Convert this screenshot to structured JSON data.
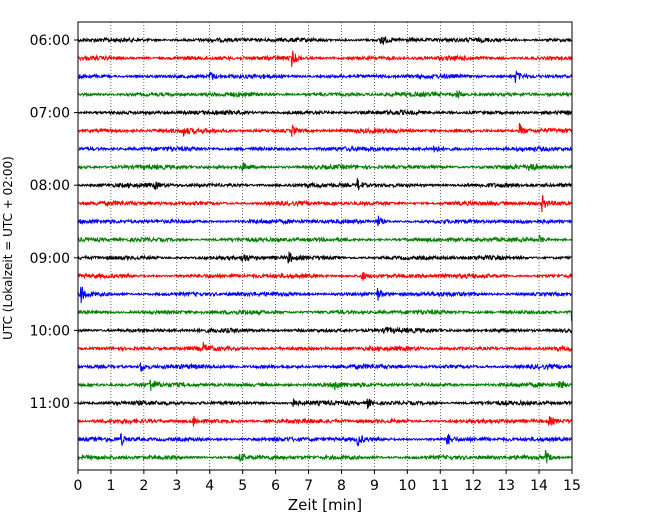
{
  "chart_data": {
    "type": "line",
    "subtype": "helicorder",
    "xlabel": "Zeit  [min]",
    "ylabel": "UTC (Lokalzeit = UTC + 02:00)",
    "xlim": [
      0,
      15
    ],
    "x_ticks": [
      0,
      1,
      2,
      3,
      4,
      5,
      6,
      7,
      8,
      9,
      10,
      11,
      12,
      13,
      14,
      15
    ],
    "x_tick_labels": [
      "0",
      "1",
      "2",
      "3",
      "4",
      "5",
      "6",
      "7",
      "8",
      "9",
      "10",
      "11",
      "12",
      "13",
      "14",
      "15"
    ],
    "y_tick_labels": [
      "06:00",
      "07:00",
      "08:00",
      "09:00",
      "10:00",
      "11:00"
    ],
    "trace_minutes": 15,
    "trace_colors": [
      "#000000",
      "#ff0000",
      "#0000ff",
      "#008000"
    ],
    "start_time": "06:00",
    "traces": [
      {
        "start": "06:00",
        "color": "#000000",
        "events": [
          [
            9.2,
            1.0
          ]
        ]
      },
      {
        "start": "06:15",
        "color": "#ff0000",
        "events": [
          [
            6.5,
            1.0
          ]
        ]
      },
      {
        "start": "06:30",
        "color": "#0000ff",
        "events": [
          [
            4.0,
            0.8
          ],
          [
            13.3,
            0.8
          ]
        ]
      },
      {
        "start": "06:45",
        "color": "#008000",
        "events": [
          [
            11.5,
            0.8
          ]
        ]
      },
      {
        "start": "07:00",
        "color": "#000000",
        "events": []
      },
      {
        "start": "07:15",
        "color": "#ff0000",
        "events": [
          [
            3.2,
            0.6
          ],
          [
            6.5,
            0.7
          ],
          [
            13.4,
            1.0
          ]
        ]
      },
      {
        "start": "07:30",
        "color": "#0000ff",
        "events": [
          [
            10.8,
            0.6
          ]
        ]
      },
      {
        "start": "07:45",
        "color": "#008000",
        "events": [
          [
            5.0,
            0.6
          ],
          [
            13.7,
            0.9
          ]
        ]
      },
      {
        "start": "08:00",
        "color": "#000000",
        "events": [
          [
            2.3,
            0.6
          ],
          [
            8.5,
            0.8
          ]
        ]
      },
      {
        "start": "08:15",
        "color": "#ff0000",
        "events": [
          [
            14.1,
            1.0
          ]
        ]
      },
      {
        "start": "08:30",
        "color": "#0000ff",
        "events": [
          [
            9.1,
            0.8
          ]
        ]
      },
      {
        "start": "08:45",
        "color": "#008000",
        "events": [
          [
            14.0,
            0.6
          ]
        ]
      },
      {
        "start": "09:00",
        "color": "#000000",
        "events": [
          [
            5.0,
            0.7
          ],
          [
            6.4,
            0.7
          ]
        ]
      },
      {
        "start": "09:15",
        "color": "#ff0000",
        "events": [
          [
            8.6,
            0.9
          ],
          [
            15.0,
            1.0
          ]
        ]
      },
      {
        "start": "09:30",
        "color": "#0000ff",
        "events": [
          [
            0.1,
            1.0
          ],
          [
            9.1,
            0.8
          ]
        ]
      },
      {
        "start": "09:45",
        "color": "#008000",
        "events": [
          [
            15.0,
            1.0
          ]
        ]
      },
      {
        "start": "10:00",
        "color": "#000000",
        "events": [
          [
            9.3,
            0.6
          ]
        ]
      },
      {
        "start": "10:15",
        "color": "#ff0000",
        "events": [
          [
            3.8,
            0.6
          ]
        ]
      },
      {
        "start": "10:30",
        "color": "#0000ff",
        "events": [
          [
            1.9,
            0.8
          ]
        ]
      },
      {
        "start": "10:45",
        "color": "#008000",
        "events": [
          [
            2.2,
            0.9
          ],
          [
            7.8,
            0.7
          ],
          [
            14.6,
            0.8
          ]
        ]
      },
      {
        "start": "11:00",
        "color": "#000000",
        "events": [
          [
            6.5,
            0.6
          ],
          [
            8.8,
            0.6
          ]
        ]
      },
      {
        "start": "11:15",
        "color": "#ff0000",
        "events": [
          [
            3.5,
            0.8
          ],
          [
            14.3,
            0.6
          ]
        ]
      },
      {
        "start": "11:30",
        "color": "#0000ff",
        "events": [
          [
            1.3,
            0.7
          ],
          [
            8.5,
            0.8
          ],
          [
            11.2,
            0.9
          ]
        ]
      },
      {
        "start": "11:45",
        "color": "#008000",
        "events": [
          [
            4.9,
            0.6
          ],
          [
            14.2,
            0.9
          ]
        ]
      }
    ]
  }
}
